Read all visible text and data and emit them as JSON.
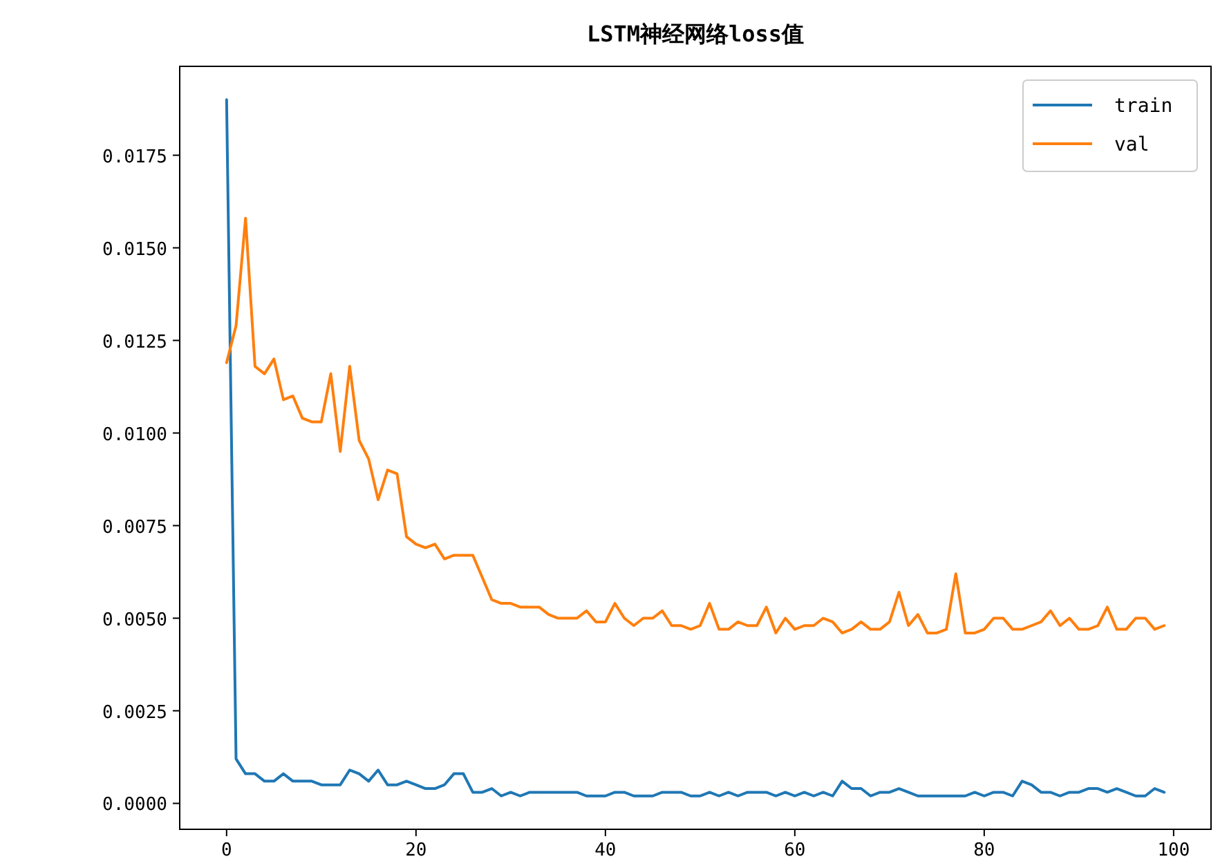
{
  "chart_data": {
    "type": "line",
    "title": "LSTM神经网络loss值",
    "x": [
      0,
      1,
      2,
      3,
      4,
      5,
      6,
      7,
      8,
      9,
      10,
      11,
      12,
      13,
      14,
      15,
      16,
      17,
      18,
      19,
      20,
      21,
      22,
      23,
      24,
      25,
      26,
      27,
      28,
      29,
      30,
      31,
      32,
      33,
      34,
      35,
      36,
      37,
      38,
      39,
      40,
      41,
      42,
      43,
      44,
      45,
      46,
      47,
      48,
      49,
      50,
      51,
      52,
      53,
      54,
      55,
      56,
      57,
      58,
      59,
      60,
      61,
      62,
      63,
      64,
      65,
      66,
      67,
      68,
      69,
      70,
      71,
      72,
      73,
      74,
      75,
      76,
      77,
      78,
      79,
      80,
      81,
      82,
      83,
      84,
      85,
      86,
      87,
      88,
      89,
      90,
      91,
      92,
      93,
      94,
      95,
      96,
      97,
      98,
      99
    ],
    "series": [
      {
        "name": "train",
        "color": "#1f77b4",
        "values": [
          0.019,
          0.0012,
          0.0008,
          0.0008,
          0.0006,
          0.0006,
          0.0008,
          0.0006,
          0.0006,
          0.0006,
          0.0005,
          0.0005,
          0.0005,
          0.0009,
          0.0008,
          0.0006,
          0.0009,
          0.0005,
          0.0005,
          0.0006,
          0.0005,
          0.0004,
          0.0004,
          0.0005,
          0.0008,
          0.0008,
          0.0003,
          0.0003,
          0.0004,
          0.0002,
          0.0003,
          0.0002,
          0.0003,
          0.0003,
          0.0003,
          0.0003,
          0.0003,
          0.0003,
          0.0002,
          0.0002,
          0.0002,
          0.0003,
          0.0003,
          0.0002,
          0.0002,
          0.0002,
          0.0003,
          0.0003,
          0.0003,
          0.0002,
          0.0002,
          0.0003,
          0.0002,
          0.0003,
          0.0002,
          0.0003,
          0.0003,
          0.0003,
          0.0002,
          0.0003,
          0.0002,
          0.0003,
          0.0002,
          0.0003,
          0.0002,
          0.0006,
          0.0004,
          0.0004,
          0.0002,
          0.0003,
          0.0003,
          0.0004,
          0.0003,
          0.0002,
          0.0002,
          0.0002,
          0.0002,
          0.0002,
          0.0002,
          0.0003,
          0.0002,
          0.0003,
          0.0003,
          0.0002,
          0.0006,
          0.0005,
          0.0003,
          0.0003,
          0.0002,
          0.0003,
          0.0003,
          0.0004,
          0.0004,
          0.0003,
          0.0004,
          0.0003,
          0.0002,
          0.0002,
          0.0004,
          0.0003
        ]
      },
      {
        "name": "val",
        "color": "#ff7f0e",
        "values": [
          0.0119,
          0.0129,
          0.0158,
          0.0118,
          0.0116,
          0.012,
          0.0109,
          0.011,
          0.0104,
          0.0103,
          0.0103,
          0.0116,
          0.0095,
          0.0118,
          0.0098,
          0.0093,
          0.0082,
          0.009,
          0.0089,
          0.0072,
          0.007,
          0.0069,
          0.007,
          0.0066,
          0.0067,
          0.0067,
          0.0067,
          0.0061,
          0.0055,
          0.0054,
          0.0054,
          0.0053,
          0.0053,
          0.0053,
          0.0051,
          0.005,
          0.005,
          0.005,
          0.0052,
          0.0049,
          0.0049,
          0.0054,
          0.005,
          0.0048,
          0.005,
          0.005,
          0.0052,
          0.0048,
          0.0048,
          0.0047,
          0.0048,
          0.0054,
          0.0047,
          0.0047,
          0.0049,
          0.0048,
          0.0048,
          0.0053,
          0.0046,
          0.005,
          0.0047,
          0.0048,
          0.0048,
          0.005,
          0.0049,
          0.0046,
          0.0047,
          0.0049,
          0.0047,
          0.0047,
          0.0049,
          0.0057,
          0.0048,
          0.0051,
          0.0046,
          0.0046,
          0.0047,
          0.0062,
          0.0046,
          0.0046,
          0.0047,
          0.005,
          0.005,
          0.0047,
          0.0047,
          0.0048,
          0.0049,
          0.0052,
          0.0048,
          0.005,
          0.0047,
          0.0047,
          0.0048,
          0.0053,
          0.0047,
          0.0047,
          0.005,
          0.005,
          0.0047,
          0.0048
        ]
      }
    ],
    "xlim": [
      -4.95,
      103.95
    ],
    "ylim": [
      -0.0007,
      0.0199
    ],
    "xticks": [
      0,
      20,
      40,
      60,
      80,
      100
    ],
    "yticks": [
      {
        "value": 0,
        "label": "0.0000"
      },
      {
        "value": 0.0025,
        "label": "0.0025"
      },
      {
        "value": 0.005,
        "label": "0.0050"
      },
      {
        "value": 0.0075,
        "label": "0.0075"
      },
      {
        "value": 0.01,
        "label": "0.0100"
      },
      {
        "value": 0.0125,
        "label": "0.0125"
      },
      {
        "value": 0.015,
        "label": "0.0150"
      },
      {
        "value": 0.0175,
        "label": "0.0175"
      }
    ],
    "legend": "top right",
    "grid": false,
    "marker": "none",
    "line_style": "solid"
  }
}
